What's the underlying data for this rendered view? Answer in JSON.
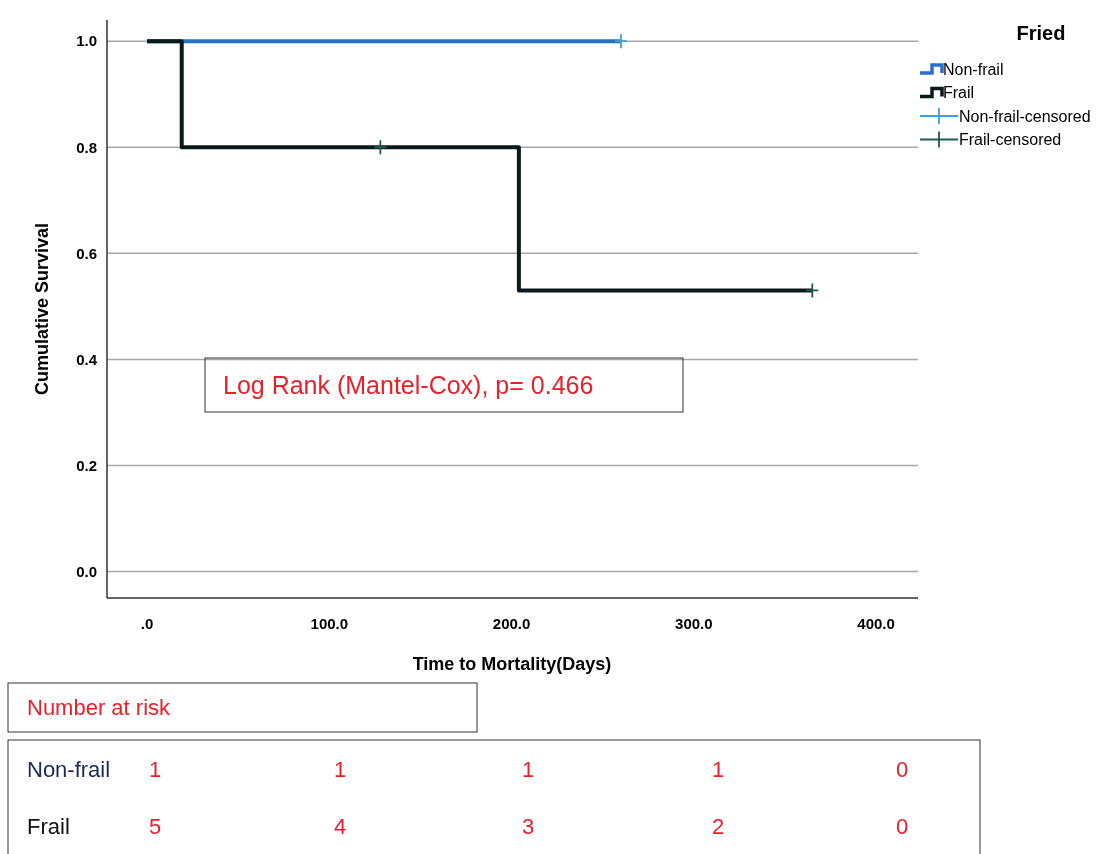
{
  "chart_data": {
    "type": "step",
    "xlabel": "Time to Mortality(Days)",
    "ylabel": "Cumulative Survival",
    "legend_title": "Fried",
    "legend": "top right",
    "grid": "y",
    "xlim": [
      -22,
      423
    ],
    "ylim": [
      -0.05,
      1.04
    ],
    "xticks": [
      {
        "value": 0,
        "label": ".0"
      },
      {
        "value": 100,
        "label": "100.0"
      },
      {
        "value": 200,
        "label": "200.0"
      },
      {
        "value": 300,
        "label": "300.0"
      },
      {
        "value": 400,
        "label": "400.0"
      }
    ],
    "yticks": [
      {
        "value": 0,
        "label": "0.0"
      },
      {
        "value": 0.2,
        "label": "0.2"
      },
      {
        "value": 0.4,
        "label": "0.4"
      },
      {
        "value": 0.6,
        "label": "0.6"
      },
      {
        "value": 0.8,
        "label": "0.8"
      },
      {
        "value": 1,
        "label": "1.0"
      }
    ],
    "series": [
      {
        "name": "Non-frail",
        "color": "#2a6fc4",
        "x": [
          0,
          260
        ],
        "values": [
          1,
          1
        ]
      },
      {
        "name": "Frail",
        "color": "#0a1a1a",
        "x": [
          0,
          19,
          204,
          365
        ],
        "values": [
          1,
          0.8,
          0.53,
          0.53
        ]
      },
      {
        "name": "Non-frail-censored",
        "type": "scatter",
        "marker": "cross",
        "color": "#3aa0e0",
        "x": [
          260
        ],
        "values": [
          1
        ]
      },
      {
        "name": "Frail-censored",
        "type": "scatter",
        "marker": "cross",
        "color": "#1e5a50",
        "x": [
          128,
          365
        ],
        "values": [
          0.8,
          0.53
        ]
      }
    ],
    "annotations": [
      "Log Rank (Mantel-Cox), p= 0.466",
      "Number at risk",
      "Non-frail",
      "1",
      "1",
      "1",
      "1",
      "0",
      "Frail",
      "5",
      "4",
      "3",
      "2",
      "0"
    ]
  }
}
